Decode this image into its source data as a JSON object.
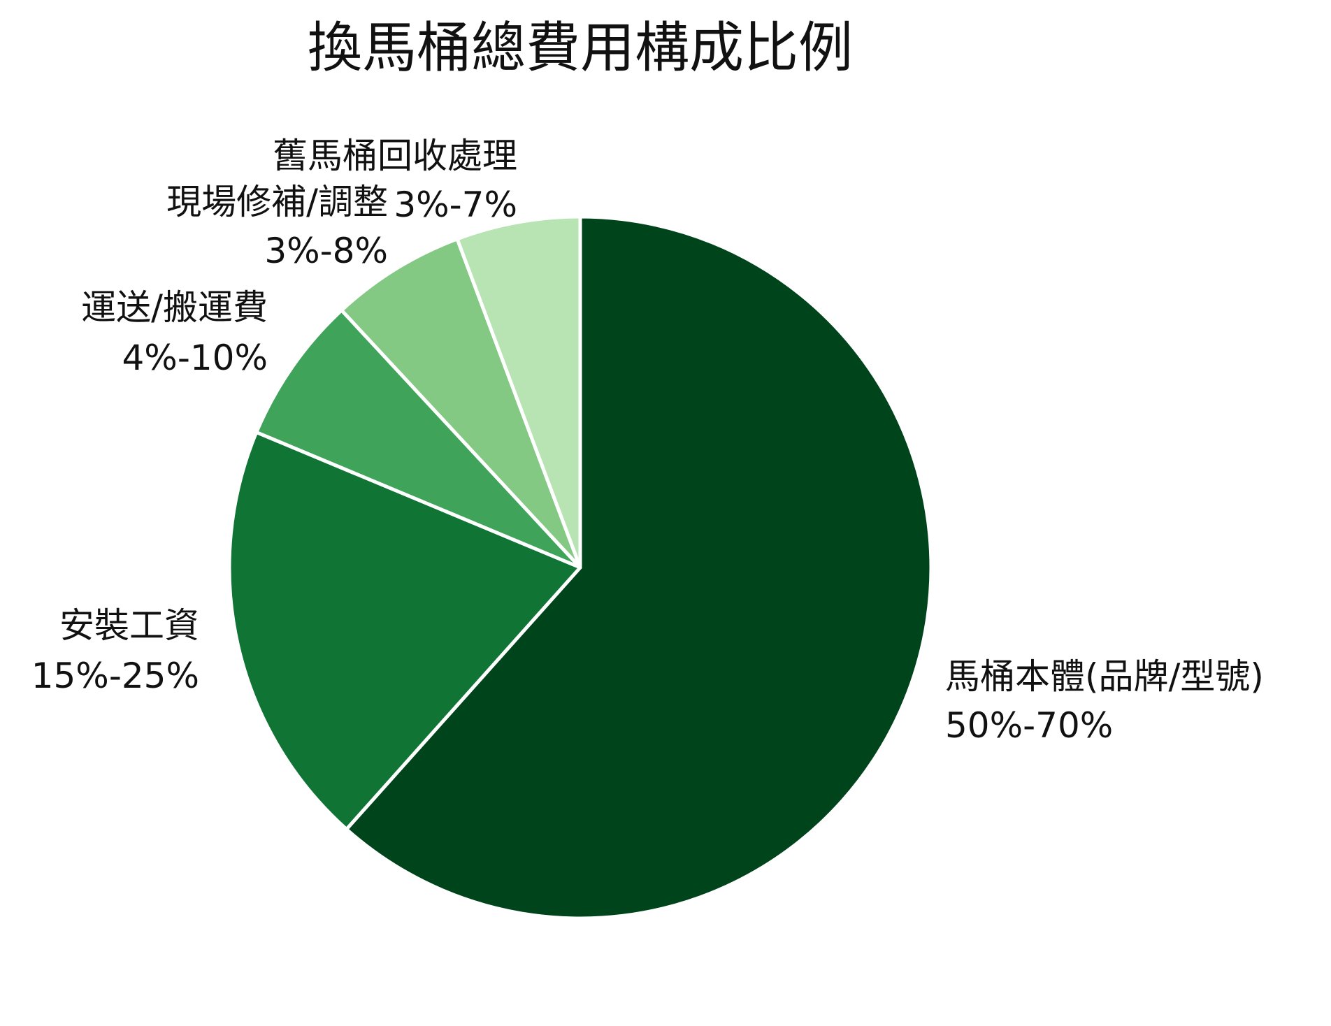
{
  "chart_data": {
    "type": "pie",
    "title": "換馬桶總費用構成比例",
    "start": "12 o'clock",
    "direction": "clockwise",
    "slices": [
      {
        "name": "馬桶本體(品牌/型號)",
        "range": "50%-70%",
        "value": 61.6,
        "color": "#00441b"
      },
      {
        "name": "安裝工資",
        "range": "15%-25%",
        "value": 19.7,
        "color": "#0f7434"
      },
      {
        "name": "運送/搬運費",
        "range": "4%-10%",
        "value": 6.8,
        "color": "#3fa45a"
      },
      {
        "name": "現場修補/調整",
        "range": "3%-8%",
        "value": 6.2,
        "color": "#83c883"
      },
      {
        "name": "舊馬桶回收處理",
        "range": "3%-7%",
        "value": 5.7,
        "color": "#b8e3b3"
      }
    ]
  }
}
